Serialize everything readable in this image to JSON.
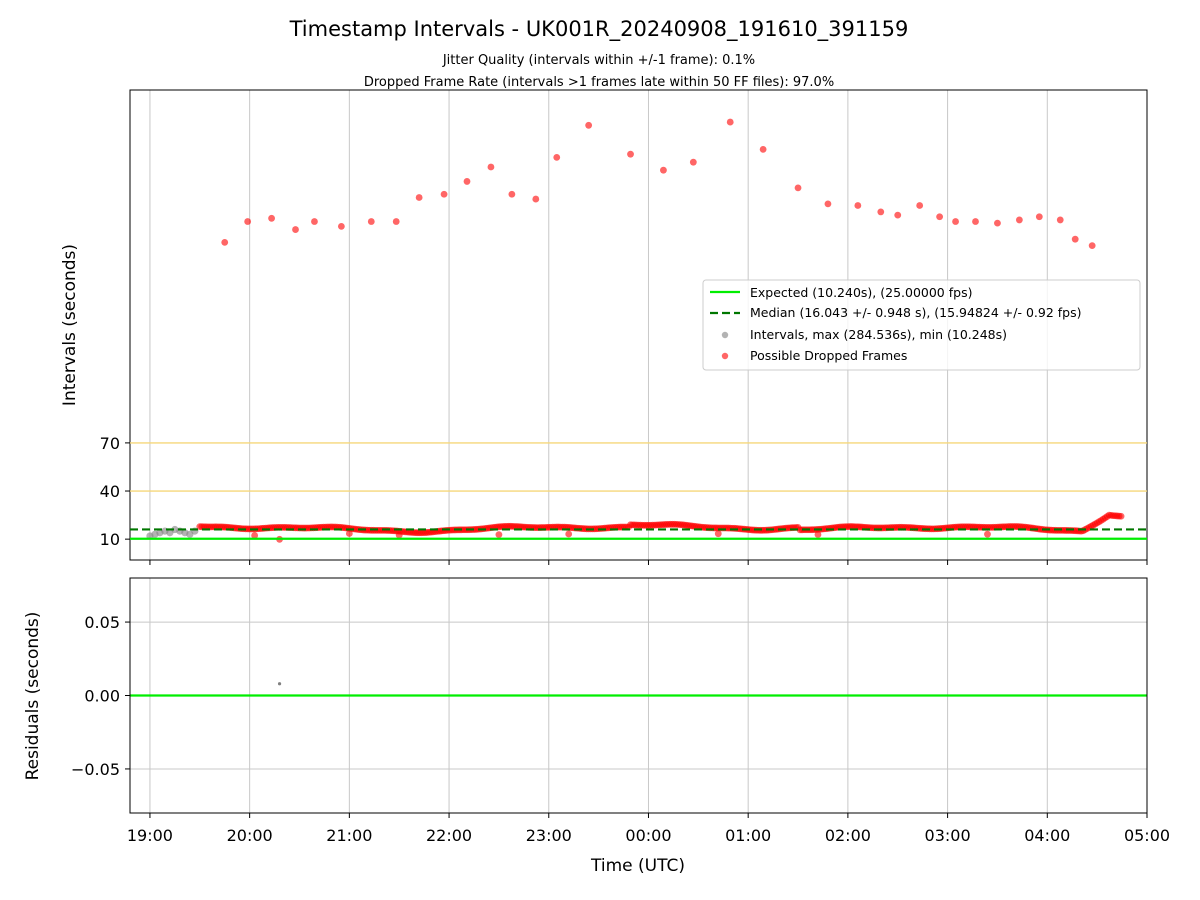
{
  "chart_data": [
    {
      "type": "scatter",
      "title": "Timestamp Intervals - UK001R_20240908_191610_391159",
      "subtitles": [
        "Jitter Quality (intervals within +/-1 frame): 0.1%",
        "Dropped Frame Rate (intervals >1 frames late within 50 FF files): 97.0%"
      ],
      "ylabel": "Intervals (seconds)",
      "yticks": [
        "10",
        "40",
        "70"
      ],
      "ytick_values": [
        10,
        40,
        70
      ],
      "ylim": [
        -3,
        290
      ],
      "xlim_hours": [
        -0.2,
        10.0
      ],
      "threshold_lines": [
        40,
        70
      ],
      "expected_line": 10.24,
      "median_line": 16.043,
      "grid": "vertical",
      "legend_position": "right",
      "legend": [
        "Expected (10.240s), (25.00000 fps)",
        "Median (16.043 +/- 0.948 s), (15.94824 +/- 0.92 fps)",
        "Intervals, max (284.536s), min (10.248s)",
        "Possible Dropped Frames"
      ],
      "colors": {
        "expected": "#00ee00",
        "median": "#007700",
        "intervals": "#808080",
        "dropped": "#ff0000",
        "threshold": "#f5d77a",
        "grid": "#c8c8c8"
      },
      "intervals_gray": {
        "x": [
          0.0,
          0.05,
          0.1,
          0.15,
          0.2,
          0.25,
          0.3,
          0.35,
          0.4,
          0.45
        ],
        "y": [
          12,
          13,
          14,
          15,
          14,
          16,
          15,
          14,
          13,
          15
        ]
      },
      "outliers": {
        "x": [
          0.75,
          0.98,
          1.22,
          1.46,
          1.65,
          1.92,
          2.22,
          2.47,
          2.7,
          2.95,
          3.18,
          3.42,
          3.63,
          3.87,
          4.08,
          4.4,
          4.82,
          5.15,
          5.45,
          5.82,
          6.15,
          6.5,
          6.8,
          7.1,
          7.33,
          7.5,
          7.72,
          7.92,
          8.08,
          8.28,
          8.5,
          8.72,
          8.92,
          9.13,
          9.28,
          9.45
        ],
        "y": [
          195,
          208,
          210,
          203,
          208,
          205,
          208,
          208,
          223,
          225,
          233,
          242,
          225,
          222,
          248,
          268,
          250,
          240,
          245,
          270,
          253,
          229,
          219,
          218,
          214,
          212,
          218,
          211,
          208,
          208,
          207,
          209,
          211,
          209,
          197,
          193
        ]
      },
      "band": {
        "start": 0.5,
        "end": 9.75,
        "base": 16.5
      },
      "low_points": {
        "x": [
          1.05,
          1.3,
          2.0,
          2.5,
          3.5,
          4.2,
          5.7,
          6.7,
          8.4
        ],
        "y": [
          12.3,
          9.9,
          13.5,
          12.5,
          12.8,
          13.2,
          13.4,
          12.9,
          13.1
        ]
      }
    },
    {
      "type": "scatter",
      "ylabel": "Residuals (seconds)",
      "xlabel": "Time (UTC)",
      "xticks": [
        "19:00",
        "20:00",
        "21:00",
        "22:00",
        "23:00",
        "00:00",
        "01:00",
        "02:00",
        "03:00",
        "04:00",
        "05:00"
      ],
      "xtick_hours": [
        0,
        1,
        2,
        3,
        4,
        5,
        6,
        7,
        8,
        9,
        10
      ],
      "yticks": [
        "0.05",
        "0.00",
        "−0.05"
      ],
      "ytick_values": [
        0.05,
        0.0,
        -0.05
      ],
      "ylim": [
        -0.08,
        0.08
      ],
      "grid": "both",
      "zero_line": 0.0,
      "points": {
        "x": [
          1.3
        ],
        "y": [
          0.008
        ]
      }
    }
  ]
}
